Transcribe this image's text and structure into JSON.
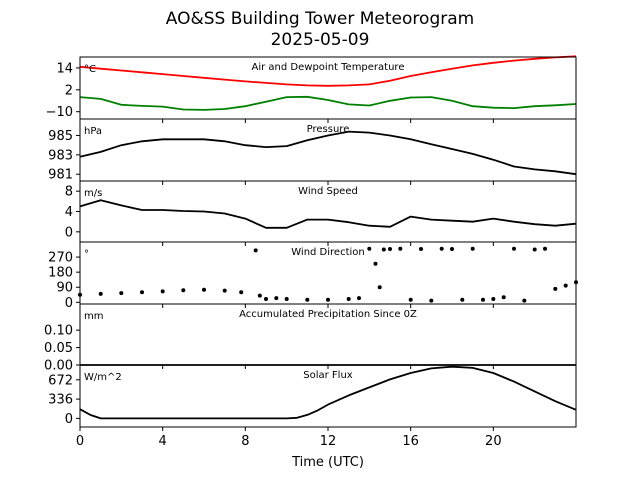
{
  "figure": {
    "title": "AO&SS Building Tower Meteorogram",
    "subtitle": "2025-05-09",
    "xlabel": "Time (UTC)"
  },
  "chart_data": [
    {
      "type": "line",
      "title": "Air and Dewpoint Temperature",
      "ylabel": "°C",
      "xlim": [
        0,
        24
      ],
      "ylim": [
        -14,
        20
      ],
      "yticks": [
        14,
        2,
        -10
      ],
      "grid": false,
      "series": [
        {
          "color": "#ff0000",
          "x": [
            0,
            1,
            2,
            3,
            4,
            5,
            6,
            7,
            8,
            9,
            10,
            11,
            12,
            13,
            14,
            15,
            16,
            17,
            18,
            19,
            20,
            21,
            22,
            23,
            24
          ],
          "values": [
            14.6,
            13.6,
            12.6,
            11.6,
            10.6,
            9.6,
            8.6,
            7.6,
            6.6,
            5.8,
            5.0,
            4.4,
            4.2,
            4.4,
            5.0,
            7.0,
            9.6,
            11.6,
            13.6,
            15.4,
            16.8,
            18.0,
            19.0,
            19.8,
            20.4
          ]
        },
        {
          "color": "#008000",
          "x": [
            0,
            1,
            2,
            3,
            4,
            5,
            6,
            7,
            8,
            9,
            10,
            11,
            12,
            13,
            14,
            15,
            16,
            17,
            18,
            19,
            20,
            21,
            22,
            23,
            24
          ],
          "values": [
            -2.0,
            -3.0,
            -6.2,
            -6.8,
            -7.2,
            -8.8,
            -9.0,
            -8.5,
            -7.0,
            -4.5,
            -2.0,
            -1.8,
            -3.6,
            -6.0,
            -6.6,
            -4.0,
            -2.2,
            -2.0,
            -4.0,
            -7.0,
            -7.8,
            -8.0,
            -7.0,
            -6.5,
            -5.8
          ]
        }
      ]
    },
    {
      "type": "line",
      "title": "Pressure",
      "ylabel": "hPa",
      "xlim": [
        0,
        24
      ],
      "ylim": [
        980.3,
        986.7
      ],
      "yticks": [
        985,
        983,
        981
      ],
      "grid": false,
      "series": [
        {
          "color": "#000000",
          "x": [
            0,
            1,
            2,
            3,
            4,
            5,
            6,
            7,
            8,
            9,
            10,
            11,
            12,
            13,
            14,
            15,
            16,
            17,
            18,
            19,
            20,
            21,
            22,
            23,
            24
          ],
          "values": [
            982.8,
            983.3,
            984.0,
            984.4,
            984.6,
            984.6,
            984.6,
            984.4,
            984.0,
            983.8,
            983.9,
            984.5,
            985.0,
            985.4,
            985.3,
            985.0,
            984.6,
            984.1,
            983.6,
            983.1,
            982.5,
            981.8,
            981.5,
            981.3,
            981.0
          ]
        }
      ]
    },
    {
      "type": "line",
      "title": "Wind Speed",
      "ylabel": "m/s",
      "xlim": [
        0,
        24
      ],
      "ylim": [
        -2,
        10
      ],
      "yticks": [
        8,
        4,
        0
      ],
      "grid": false,
      "series": [
        {
          "color": "#000000",
          "x": [
            0,
            1,
            2,
            3,
            4,
            5,
            6,
            7,
            8,
            9,
            10,
            11,
            12,
            13,
            14,
            15,
            16,
            17,
            18,
            19,
            20,
            21,
            22,
            23,
            24
          ],
          "values": [
            5.0,
            6.2,
            5.2,
            4.3,
            4.3,
            4.1,
            4.0,
            3.6,
            2.6,
            0.8,
            0.8,
            2.4,
            2.4,
            1.9,
            1.2,
            1.0,
            3.0,
            2.4,
            2.2,
            2.0,
            2.6,
            2.0,
            1.5,
            1.2,
            1.6
          ]
        }
      ]
    },
    {
      "type": "scatter",
      "title": "Wind Direction",
      "ylabel": "°",
      "xlim": [
        0,
        24
      ],
      "ylim": [
        -10,
        360
      ],
      "yticks": [
        270,
        180,
        90,
        0
      ],
      "grid": false,
      "series": [
        {
          "color": "#000000",
          "x": [
            0,
            1,
            2,
            3,
            4,
            5,
            6,
            7,
            7.8,
            8.5,
            8.7,
            9.0,
            9.5,
            10,
            11,
            12,
            13,
            13.5,
            14,
            14.3,
            14.5,
            14.7,
            15,
            15.5,
            16,
            16.5,
            17,
            17.5,
            18,
            18.5,
            19,
            19.5,
            20,
            20.5,
            21,
            21.5,
            22,
            22.5,
            23,
            23.5,
            24
          ],
          "values": [
            45,
            50,
            55,
            60,
            65,
            72,
            75,
            70,
            60,
            310,
            40,
            20,
            25,
            20,
            15,
            15,
            20,
            25,
            320,
            230,
            90,
            315,
            318,
            320,
            15,
            318,
            10,
            320,
            318,
            15,
            320,
            15,
            20,
            30,
            320,
            10,
            315,
            320,
            80,
            100,
            120
          ]
        }
      ]
    },
    {
      "type": "line",
      "title": "Accumulated Precipitation Since 0Z",
      "ylabel": "mm",
      "xlim": [
        0,
        24
      ],
      "ylim": [
        0,
        0.175
      ],
      "yticks": [
        0.1,
        0.05,
        0.0
      ],
      "ytick_labels": [
        "0.10",
        "0.05",
        "0.00"
      ],
      "grid": false,
      "series": [
        {
          "color": "#000000",
          "x": [
            0,
            24
          ],
          "values": [
            0,
            0
          ]
        }
      ]
    },
    {
      "type": "line",
      "title": "Solar Flux",
      "ylabel": "W/m^2",
      "xlim": [
        0,
        24
      ],
      "xticks": [
        0,
        4,
        8,
        12,
        16,
        20
      ],
      "ylim": [
        -150,
        930
      ],
      "yticks": [
        672,
        336,
        0
      ],
      "grid": false,
      "series": [
        {
          "color": "#000000",
          "x": [
            0,
            0.5,
            1,
            2,
            4,
            6,
            8,
            10,
            10.5,
            11,
            11.5,
            12,
            13,
            14,
            15,
            16,
            17,
            18,
            19,
            20,
            21,
            22,
            23,
            24
          ],
          "values": [
            160,
            60,
            0,
            0,
            0,
            0,
            0,
            0,
            10,
            60,
            140,
            240,
            400,
            540,
            680,
            790,
            870,
            900,
            880,
            790,
            640,
            470,
            300,
            150
          ]
        }
      ]
    }
  ]
}
